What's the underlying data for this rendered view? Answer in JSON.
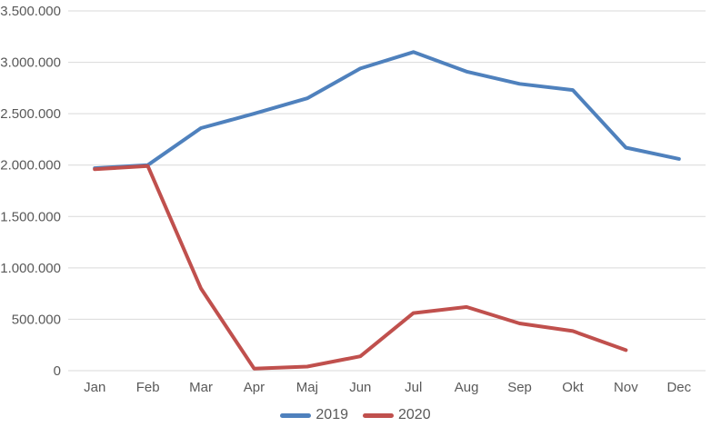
{
  "chart_data": {
    "type": "line",
    "title": "",
    "xlabel": "",
    "ylabel": "",
    "categories": [
      "Jan",
      "Feb",
      "Mar",
      "Apr",
      "Maj",
      "Jun",
      "Jul",
      "Aug",
      "Sep",
      "Okt",
      "Nov",
      "Dec"
    ],
    "series": [
      {
        "name": "2019",
        "color": "#4F81BD",
        "values": [
          1970000,
          2000000,
          2360000,
          2500000,
          2650000,
          2940000,
          3100000,
          2910000,
          2790000,
          2730000,
          2170000,
          2060000
        ]
      },
      {
        "name": "2020",
        "color": "#C0504D",
        "values": [
          1960000,
          1990000,
          800000,
          20000,
          40000,
          140000,
          560000,
          620000,
          460000,
          385000,
          200000,
          null
        ]
      }
    ],
    "ylim": [
      0,
      3500000
    ],
    "y_tick_interval": 500000,
    "y_tick_labels": [
      "0",
      "500.000",
      "1.000.000",
      "1.500.000",
      "2.000.000",
      "2.500.000",
      "3.000.000",
      "3.500.000"
    ],
    "grid": "horizontal",
    "legend_position": "bottom"
  },
  "style": {
    "background": "#FFFFFF",
    "text_color": "#595959",
    "gridline_color": "#D9D9D9",
    "line_width": 4
  }
}
